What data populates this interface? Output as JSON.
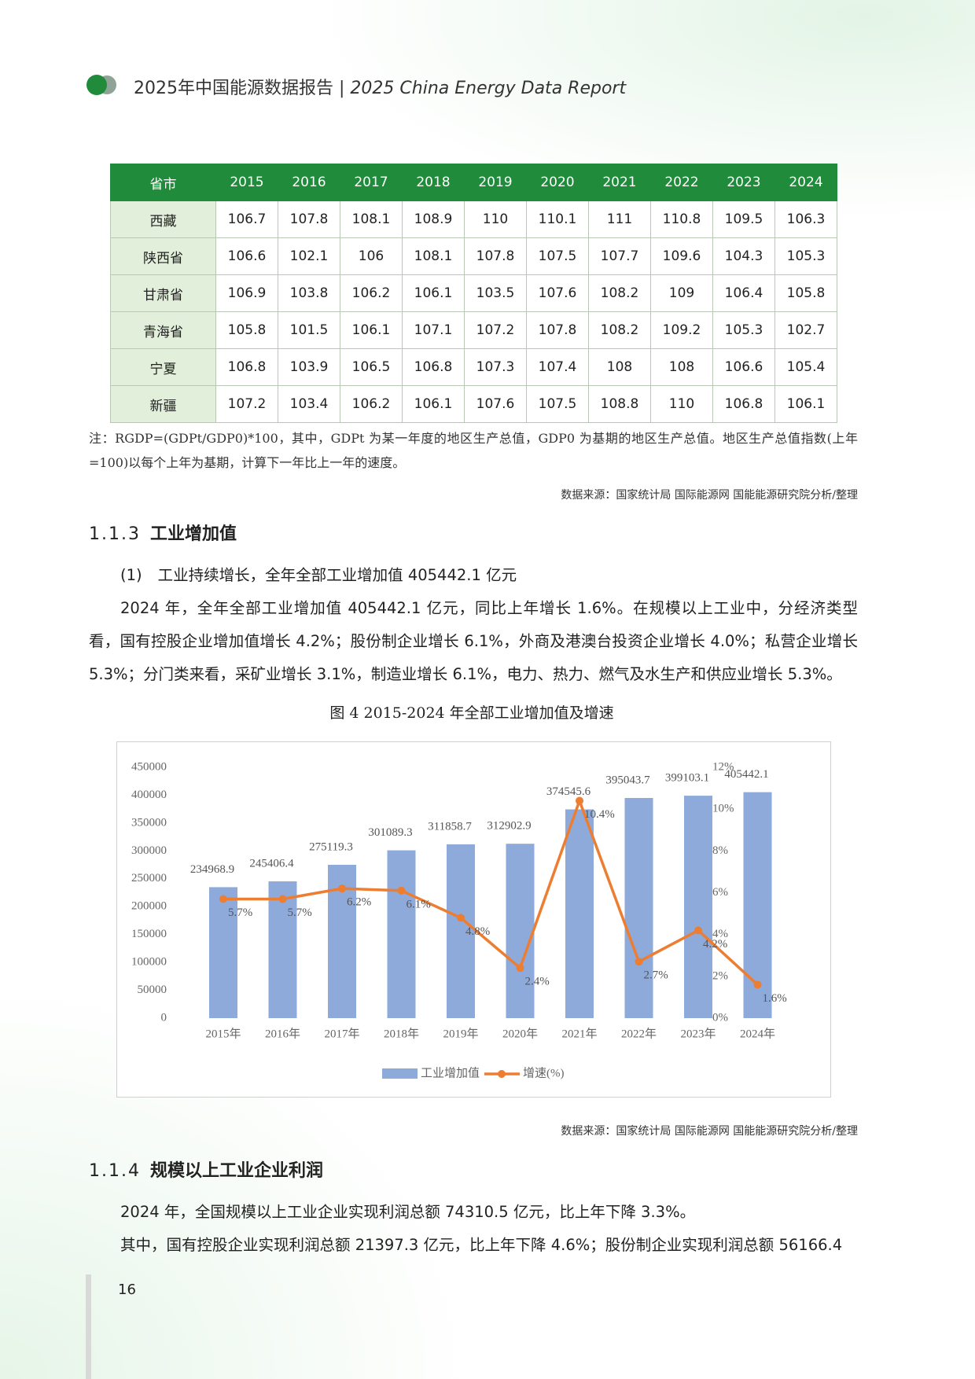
{
  "header": {
    "title_cn": "2025年中国能源数据报告",
    "separator": "|",
    "title_en": "2025 China Energy Data Report"
  },
  "table": {
    "header": [
      "省市",
      "2015",
      "2016",
      "2017",
      "2018",
      "2019",
      "2020",
      "2021",
      "2022",
      "2023",
      "2024"
    ],
    "rows": [
      [
        "西藏",
        106.7,
        107.8,
        108.1,
        108.9,
        110,
        110.1,
        111,
        110.8,
        109.5,
        106.3
      ],
      [
        "陕西省",
        106.6,
        102.1,
        106,
        108.1,
        107.8,
        107.5,
        107.7,
        109.6,
        104.3,
        105.3
      ],
      [
        "甘肃省",
        106.9,
        103.8,
        106.2,
        106.1,
        103.5,
        107.6,
        108.2,
        109,
        106.4,
        105.8
      ],
      [
        "青海省",
        105.8,
        101.5,
        106.1,
        107.1,
        107.2,
        107.8,
        108.2,
        109.2,
        105.3,
        102.7
      ],
      [
        "宁夏",
        106.8,
        103.9,
        106.5,
        106.8,
        107.3,
        107.4,
        108,
        108,
        106.6,
        105.4
      ],
      [
        "新疆",
        107.2,
        103.4,
        106.2,
        106.1,
        107.6,
        107.5,
        108.8,
        110,
        106.8,
        106.1
      ]
    ]
  },
  "table_note": "注：RGDP=(GDPt/GDP0)*100，其中，GDPt 为某一年度的地区生产总值，GDP0 为基期的地区生产总值。地区生产总值指数(上年=100)以每个上年为基期，计算下一年比上一年的速度。",
  "table_source": "数据来源：国家统计局 国际能源网 国能能源研究院分析/整理",
  "section_1": {
    "number": "1.1.3",
    "title": "工业增加值",
    "item_number": "(1)",
    "item_title": "工业持续增长，全年全部工业增加值 405442.1 亿元",
    "paragraph": "2024 年，全年全部工业增加值 405442.1 亿元，同比上年增长 1.6%。在规模以上工业中，分经济类型看，国有控股企业增加值增长 4.2%；股份制企业增长 6.1%，外商及港澳台投资企业增长 4.0%；私营企业增长 5.3%；分门类来看，采矿业增长 3.1%，制造业增长 6.1%，电力、热力、燃气及水生产和供应业增长 5.3%。"
  },
  "chart_data": {
    "type": "bar-line",
    "title": "图 4 2015-2024 年全部工业增加值及增速",
    "categories": [
      "2015年",
      "2016年",
      "2017年",
      "2018年",
      "2019年",
      "2020年",
      "2021年",
      "2022年",
      "2023年",
      "2024年"
    ],
    "series": [
      {
        "name": "工业增加值",
        "type": "bar",
        "color": "#8eaadb",
        "values": [
          234968.9,
          245406.4,
          275119.3,
          301089.3,
          311858.7,
          312902.9,
          374545.6,
          395043.7,
          399103.1,
          405442.1
        ]
      },
      {
        "name": "增速(%)",
        "type": "line",
        "axis": "y2",
        "color": "#ed7d31",
        "values": [
          5.7,
          5.7,
          6.2,
          6.1,
          4.8,
          2.4,
          10.4,
          2.7,
          4.2,
          1.6
        ],
        "value_labels": [
          "5.7%",
          "5.7%",
          "6.2%",
          "6.1%",
          "4.8%",
          "2.4%",
          "10.4%",
          "2.7%",
          "4.2%",
          "1.6%"
        ]
      }
    ],
    "ylim": [
      0,
      450000
    ],
    "yticks": [
      0,
      50000,
      100000,
      150000,
      200000,
      250000,
      300000,
      350000,
      400000,
      450000
    ],
    "y2lim": [
      0,
      12
    ],
    "y2ticks": [
      {
        "value": 0,
        "label": "0%"
      },
      {
        "value": 2,
        "label": "2%"
      },
      {
        "value": 4,
        "label": "4%"
      },
      {
        "value": 6,
        "label": "6%"
      },
      {
        "value": 8,
        "label": "8%"
      },
      {
        "value": 10,
        "label": "10%"
      },
      {
        "value": 12,
        "label": "12%"
      }
    ],
    "grid": false,
    "legend": "bottom"
  },
  "chart_source": "数据来源：国家统计局 国际能源网 国能能源研究院分析/整理",
  "section_2": {
    "number": "1.1.4",
    "title": "规模以上工业企业利润",
    "lines": [
      "2024 年，全国规模以上工业企业实现利润总额 74310.5 亿元，比上年下降 3.3%。",
      "其中，国有控股企业实现利润总额 21397.3 亿元，比上年下降 4.6%；股份制企业实现利润总额 56166.4"
    ]
  },
  "page_number": "16"
}
